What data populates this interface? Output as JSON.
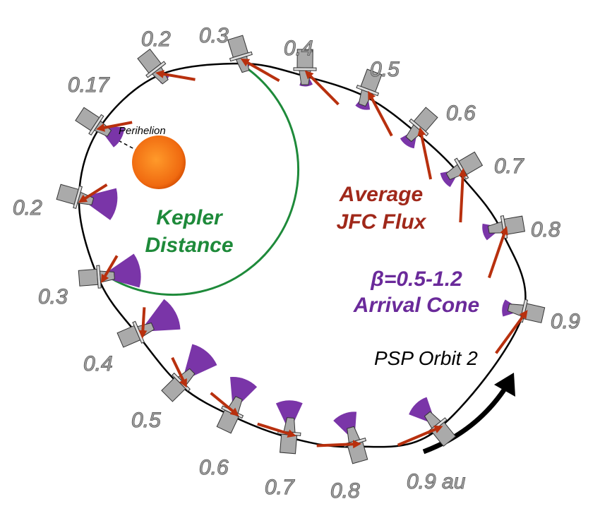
{
  "labels": {
    "distances": [
      "0.2",
      "0.3",
      "0.4",
      "0.5",
      "0.6",
      "0.7",
      "0.8",
      "0.9",
      "0.9 au",
      "0.8",
      "0.7",
      "0.6",
      "0.5",
      "0.4",
      "0.3",
      "0.2",
      "0.17"
    ],
    "perihelion": "Perihelion",
    "kepler": [
      "Kepler",
      "Distance"
    ],
    "flux": [
      "Average",
      "JFC Flux"
    ],
    "cone": [
      "β=0.5-1.2",
      "Arrival Cone"
    ],
    "orbit": "PSP Orbit 2"
  }
}
